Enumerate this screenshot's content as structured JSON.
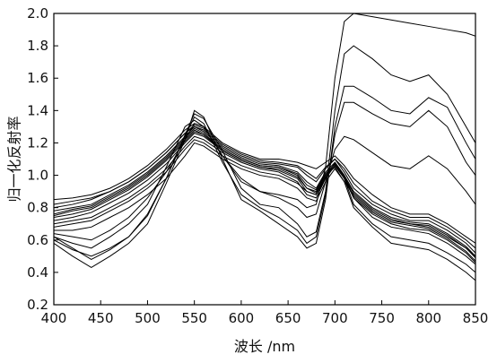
{
  "chart_data": {
    "type": "line",
    "title": "",
    "xlabel": "波长 /nm",
    "ylabel": "归一化反射率",
    "xlim": [
      400,
      850
    ],
    "ylim": [
      0.2,
      2.0
    ],
    "xticks": [
      400,
      450,
      500,
      550,
      600,
      650,
      700,
      750,
      800,
      850
    ],
    "yticks": [
      0.2,
      0.4,
      0.6,
      0.8,
      1.0,
      1.2,
      1.4,
      1.6,
      1.8,
      2.0
    ],
    "xtick_labels": [
      "400",
      "450",
      "500",
      "550",
      "600",
      "650",
      "700",
      "750",
      "800",
      "850"
    ],
    "ytick_labels": [
      "0.2",
      "0.4",
      "0.6",
      "0.8",
      "1.0",
      "1.2",
      "1.4",
      "1.6",
      "1.8",
      "2.0"
    ],
    "grid": false,
    "legend": "none",
    "line_color": "#000000",
    "x": [
      400,
      420,
      440,
      460,
      480,
      500,
      520,
      540,
      550,
      560,
      580,
      600,
      620,
      640,
      660,
      670,
      680,
      690,
      700,
      710,
      720,
      740,
      760,
      780,
      800,
      820,
      840,
      850
    ],
    "series": [
      {
        "values": [
          0.62,
          0.58,
          0.55,
          0.62,
          0.7,
          0.82,
          1.05,
          1.3,
          1.34,
          1.3,
          1.12,
          0.98,
          0.9,
          0.88,
          0.85,
          0.8,
          0.82,
          1.05,
          1.6,
          1.95,
          2.0,
          1.98,
          1.96,
          1.94,
          1.92,
          1.9,
          1.88,
          1.86
        ]
      },
      {
        "values": [
          0.6,
          0.54,
          0.5,
          0.55,
          0.62,
          0.75,
          0.98,
          1.25,
          1.38,
          1.35,
          1.15,
          0.92,
          0.82,
          0.8,
          0.7,
          0.62,
          0.65,
          0.9,
          1.4,
          1.75,
          1.8,
          1.72,
          1.62,
          1.58,
          1.62,
          1.5,
          1.3,
          1.2
        ]
      },
      {
        "values": [
          0.58,
          0.5,
          0.43,
          0.5,
          0.58,
          0.7,
          0.95,
          1.22,
          1.4,
          1.36,
          1.1,
          0.85,
          0.78,
          0.7,
          0.62,
          0.55,
          0.58,
          0.85,
          1.3,
          1.55,
          1.55,
          1.48,
          1.4,
          1.38,
          1.48,
          1.42,
          1.2,
          1.1
        ]
      },
      {
        "values": [
          0.62,
          0.55,
          0.48,
          0.54,
          0.62,
          0.76,
          0.98,
          1.24,
          1.36,
          1.32,
          1.08,
          0.88,
          0.8,
          0.74,
          0.66,
          0.58,
          0.62,
          0.88,
          1.25,
          1.45,
          1.45,
          1.38,
          1.32,
          1.3,
          1.4,
          1.3,
          1.08,
          1.0
        ]
      },
      {
        "values": [
          0.75,
          0.78,
          0.8,
          0.86,
          0.92,
          1.0,
          1.1,
          1.22,
          1.28,
          1.25,
          1.16,
          1.1,
          1.06,
          1.05,
          1.0,
          0.92,
          0.9,
          1.0,
          1.05,
          0.96,
          0.88,
          0.78,
          0.72,
          0.7,
          0.68,
          0.62,
          0.55,
          0.5
        ]
      },
      {
        "values": [
          0.8,
          0.82,
          0.85,
          0.9,
          0.96,
          1.04,
          1.14,
          1.26,
          1.3,
          1.28,
          1.18,
          1.12,
          1.08,
          1.07,
          1.05,
          1.0,
          0.96,
          1.04,
          1.1,
          1.02,
          0.92,
          0.82,
          0.76,
          0.72,
          0.72,
          0.66,
          0.58,
          0.52
        ]
      },
      {
        "values": [
          0.7,
          0.72,
          0.74,
          0.8,
          0.86,
          0.94,
          1.04,
          1.18,
          1.24,
          1.22,
          1.14,
          1.08,
          1.04,
          1.02,
          0.96,
          0.88,
          0.86,
          0.98,
          1.08,
          1.0,
          0.86,
          0.74,
          0.68,
          0.66,
          0.64,
          0.58,
          0.5,
          0.45
        ]
      },
      {
        "values": [
          0.85,
          0.86,
          0.88,
          0.92,
          0.98,
          1.06,
          1.16,
          1.28,
          1.32,
          1.3,
          1.2,
          1.14,
          1.1,
          1.1,
          1.08,
          1.06,
          1.04,
          1.08,
          1.12,
          1.06,
          0.98,
          0.88,
          0.8,
          0.76,
          0.76,
          0.7,
          0.62,
          0.58
        ]
      },
      {
        "values": [
          0.68,
          0.7,
          0.72,
          0.78,
          0.84,
          0.92,
          1.02,
          1.16,
          1.22,
          1.2,
          1.12,
          1.06,
          1.02,
          1.0,
          0.95,
          0.9,
          0.88,
          0.98,
          1.06,
          0.98,
          0.82,
          0.7,
          0.62,
          0.6,
          0.58,
          0.52,
          0.45,
          0.4
        ]
      },
      {
        "values": [
          0.78,
          0.8,
          0.82,
          0.88,
          0.94,
          1.02,
          1.12,
          1.24,
          1.3,
          1.27,
          1.17,
          1.11,
          1.07,
          1.06,
          1.02,
          0.96,
          0.92,
          1.02,
          1.08,
          1.0,
          0.9,
          0.8,
          0.74,
          0.71,
          0.7,
          0.64,
          0.56,
          0.5
        ]
      },
      {
        "values": [
          0.72,
          0.74,
          0.77,
          0.83,
          0.89,
          0.97,
          1.07,
          1.2,
          1.26,
          1.24,
          1.15,
          1.09,
          1.05,
          1.03,
          0.98,
          0.9,
          0.88,
          0.99,
          1.06,
          0.98,
          0.86,
          0.76,
          0.7,
          0.67,
          0.66,
          0.6,
          0.52,
          0.46
        ]
      },
      {
        "values": [
          0.82,
          0.84,
          0.86,
          0.9,
          0.96,
          1.04,
          1.14,
          1.26,
          1.31,
          1.29,
          1.19,
          1.13,
          1.09,
          1.08,
          1.06,
          1.02,
          0.98,
          1.05,
          1.1,
          1.04,
          0.95,
          0.84,
          0.78,
          0.74,
          0.74,
          0.68,
          0.6,
          0.55
        ]
      },
      {
        "values": [
          0.66,
          0.66,
          0.68,
          0.74,
          0.8,
          0.88,
          0.98,
          1.12,
          1.2,
          1.18,
          1.1,
          1.04,
          1.0,
          0.98,
          0.92,
          0.86,
          0.84,
          0.96,
          1.04,
          0.96,
          0.8,
          0.68,
          0.58,
          0.56,
          0.54,
          0.48,
          0.4,
          0.35
        ]
      },
      {
        "values": [
          0.76,
          0.79,
          0.81,
          0.87,
          0.93,
          1.01,
          1.11,
          1.23,
          1.29,
          1.26,
          1.16,
          1.1,
          1.06,
          1.05,
          1.01,
          0.94,
          0.91,
          1.01,
          1.07,
          0.99,
          0.89,
          0.79,
          0.73,
          0.7,
          0.69,
          0.63,
          0.55,
          0.49
        ]
      },
      {
        "values": [
          0.74,
          0.76,
          0.79,
          0.85,
          0.91,
          0.99,
          1.09,
          1.21,
          1.27,
          1.25,
          1.15,
          1.09,
          1.05,
          1.04,
          0.99,
          0.92,
          0.89,
          1.0,
          1.07,
          0.99,
          0.87,
          0.77,
          0.71,
          0.69,
          0.67,
          0.61,
          0.53,
          0.47
        ]
      },
      {
        "values": [
          0.64,
          0.62,
          0.6,
          0.66,
          0.74,
          0.86,
          1.02,
          1.22,
          1.32,
          1.3,
          1.12,
          0.96,
          0.9,
          0.86,
          0.8,
          0.74,
          0.76,
          0.96,
          1.16,
          1.24,
          1.22,
          1.14,
          1.06,
          1.04,
          1.12,
          1.04,
          0.9,
          0.82
        ]
      }
    ]
  }
}
